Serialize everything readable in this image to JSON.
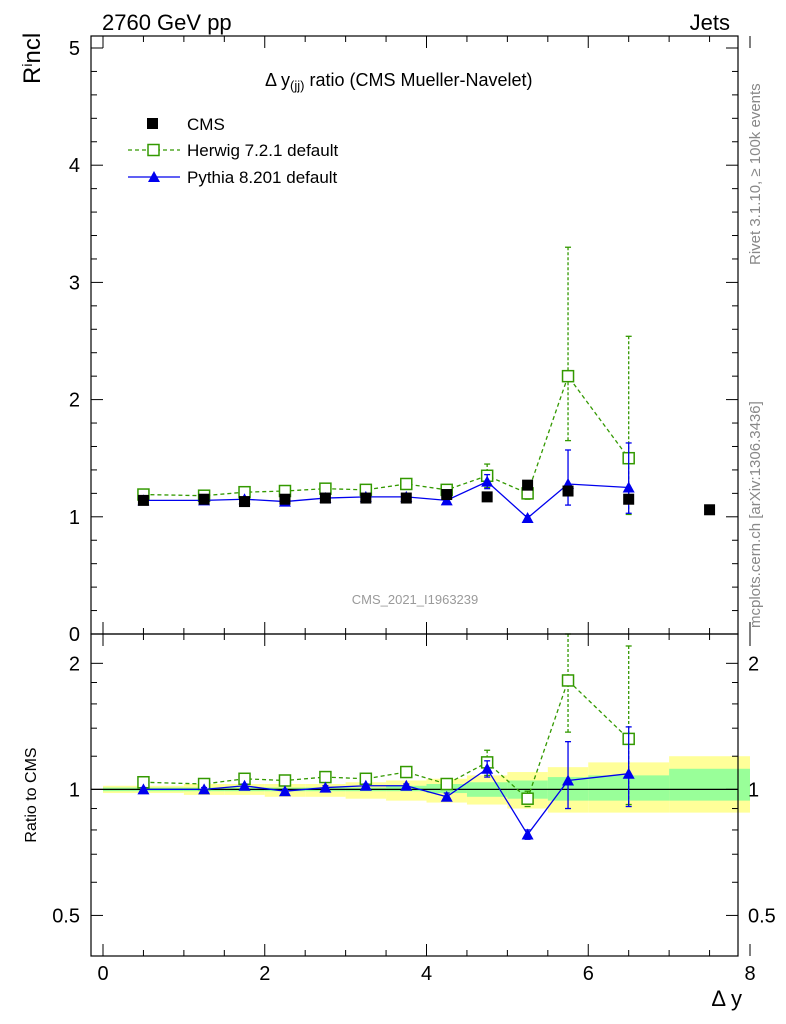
{
  "header": {
    "left": "2760 GeV pp",
    "right": "Jets",
    "title_main": "Δ y",
    "title_sub": "(jj)",
    "title_rest": " ratio (CMS Mueller-Navelet)",
    "watermark": "CMS_2021_I1963239",
    "side_top": "Rivet 3.1.10, ≥ 100k events",
    "side_bottom": "mcplots.cern.ch [arXiv:1306.3436]",
    "ylabel_top": "R",
    "ylabel_top_sup": "i",
    "ylabel_top_rest": "ncl",
    "ylabel_bottom": "Ratio to CMS",
    "xlabel": "Δ y"
  },
  "colors": {
    "data": "#000000",
    "herwig": "#339900",
    "pythia": "#0000ee",
    "band_outer": "#ffff99",
    "band_inner": "#99ff99"
  },
  "chart_data": [
    {
      "type": "scatter",
      "panel": "main",
      "xlim": [
        0,
        8
      ],
      "ylim": [
        0,
        5
      ],
      "yticks": [
        "1",
        "2",
        "3",
        "4",
        "5"
      ],
      "xticks": [
        "0",
        "2",
        "4",
        "6",
        "8"
      ],
      "legend": [
        "CMS",
        "Herwig 7.2.1 default",
        "Pythia 8.201 default"
      ],
      "legend_position": "top-left",
      "series": [
        {
          "name": "CMS",
          "x": [
            0.5,
            1.25,
            1.75,
            2.25,
            2.75,
            3.25,
            3.75,
            4.25,
            4.75,
            5.25,
            5.75,
            6.5,
            7.5
          ],
          "y": [
            1.14,
            1.15,
            1.13,
            1.15,
            1.16,
            1.16,
            1.16,
            1.19,
            1.17,
            1.27,
            1.22,
            1.15,
            1.06
          ]
        },
        {
          "name": "Herwig 7.2.1 default",
          "x": [
            0.5,
            1.25,
            1.75,
            2.25,
            2.75,
            3.25,
            3.75,
            4.25,
            4.75,
            5.25,
            5.75,
            6.5
          ],
          "y": [
            1.19,
            1.18,
            1.21,
            1.22,
            1.24,
            1.23,
            1.28,
            1.23,
            1.35,
            1.2,
            2.2,
            1.5
          ],
          "err_low": [
            0.02,
            0.02,
            0.02,
            0.02,
            0.02,
            0.02,
            0.02,
            0.03,
            0.1,
            0.05,
            0.55,
            0.48
          ],
          "err_high": [
            0.02,
            0.02,
            0.02,
            0.02,
            0.02,
            0.02,
            0.02,
            0.03,
            0.1,
            0.05,
            1.1,
            1.04
          ]
        },
        {
          "name": "Pythia 8.201 default",
          "x": [
            0.5,
            1.25,
            1.75,
            2.25,
            2.75,
            3.25,
            3.75,
            4.25,
            4.75,
            5.25,
            5.75,
            6.5
          ],
          "y": [
            1.14,
            1.14,
            1.15,
            1.13,
            1.16,
            1.17,
            1.17,
            1.14,
            1.3,
            0.99,
            1.28,
            1.25
          ],
          "err_low": [
            0.01,
            0.01,
            0.01,
            0.01,
            0.01,
            0.01,
            0.01,
            0.02,
            0.06,
            0.02,
            0.18,
            0.22
          ],
          "err_high": [
            0.01,
            0.01,
            0.01,
            0.01,
            0.01,
            0.01,
            0.01,
            0.02,
            0.06,
            0.02,
            0.29,
            0.38
          ]
        }
      ]
    },
    {
      "type": "scatter",
      "panel": "ratio",
      "xlim": [
        0,
        8
      ],
      "ylim": [
        0.4,
        2.35
      ],
      "yscale": "log",
      "yticks": [
        "0.5",
        "1",
        "2"
      ],
      "xticks": [
        "0",
        "2",
        "4",
        "6",
        "8"
      ],
      "bands": {
        "edges": [
          0,
          1,
          1.5,
          2,
          2.5,
          3,
          3.5,
          4,
          4.5,
          5,
          5.5,
          6,
          7,
          8
        ],
        "inner_low": [
          0.99,
          0.99,
          0.99,
          0.99,
          0.99,
          0.99,
          0.99,
          0.98,
          0.96,
          0.95,
          0.94,
          0.94,
          0.94
        ],
        "inner_high": [
          1.01,
          1.01,
          1.01,
          1.01,
          1.01,
          1.01,
          1.02,
          1.03,
          1.04,
          1.05,
          1.07,
          1.08,
          1.12
        ],
        "outer_low": [
          0.98,
          0.97,
          0.97,
          0.96,
          0.96,
          0.95,
          0.94,
          0.93,
          0.92,
          0.9,
          0.88,
          0.88,
          0.88
        ],
        "outer_high": [
          1.02,
          1.03,
          1.03,
          1.03,
          1.03,
          1.04,
          1.05,
          1.06,
          1.08,
          1.1,
          1.13,
          1.16,
          1.2
        ]
      },
      "series": [
        {
          "name": "Herwig 7.2.1 default",
          "x": [
            0.5,
            1.25,
            1.75,
            2.25,
            2.75,
            3.25,
            3.75,
            4.25,
            4.75,
            5.25,
            5.75,
            6.5
          ],
          "y": [
            1.04,
            1.03,
            1.06,
            1.05,
            1.07,
            1.06,
            1.1,
            1.03,
            1.16,
            0.95,
            1.82,
            1.32
          ],
          "err_low": [
            0.02,
            0.02,
            0.02,
            0.02,
            0.02,
            0.02,
            0.02,
            0.03,
            0.08,
            0.04,
            0.45,
            0.4
          ],
          "err_high": [
            0.02,
            0.02,
            0.02,
            0.02,
            0.02,
            0.02,
            0.02,
            0.03,
            0.08,
            0.04,
            0.8,
            0.88
          ]
        },
        {
          "name": "Pythia 8.201 default",
          "x": [
            0.5,
            1.25,
            1.75,
            2.25,
            2.75,
            3.25,
            3.75,
            4.25,
            4.75,
            5.25,
            5.75,
            6.5
          ],
          "y": [
            1.0,
            1.0,
            1.02,
            0.99,
            1.01,
            1.02,
            1.02,
            0.96,
            1.12,
            0.78,
            1.05,
            1.09
          ],
          "err_low": [
            0.01,
            0.01,
            0.01,
            0.01,
            0.01,
            0.01,
            0.01,
            0.02,
            0.05,
            0.02,
            0.15,
            0.18
          ],
          "err_high": [
            0.01,
            0.01,
            0.01,
            0.01,
            0.01,
            0.01,
            0.01,
            0.02,
            0.05,
            0.02,
            0.25,
            0.32
          ]
        }
      ]
    }
  ]
}
